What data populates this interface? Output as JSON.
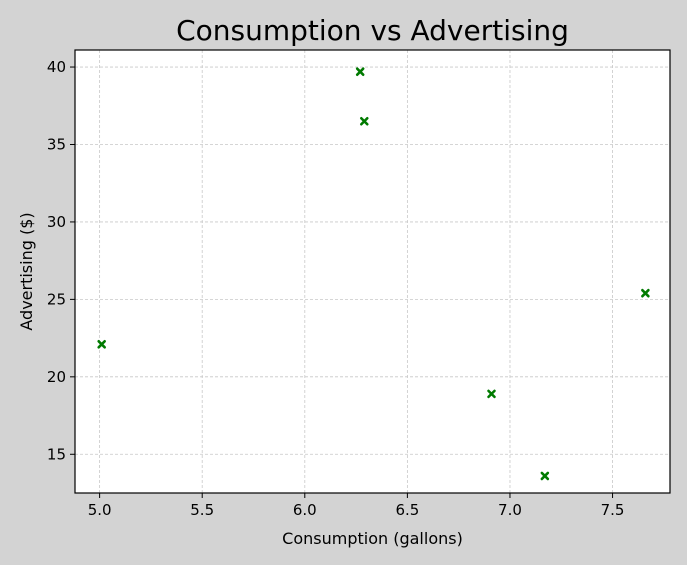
{
  "chart_data": {
    "type": "scatter",
    "title": "Consumption vs Advertising",
    "xlabel": "Consumption (gallons)",
    "ylabel": "Advertising ($)",
    "xlim": [
      4.88,
      7.78
    ],
    "ylim": [
      12.5,
      41.1
    ],
    "xticks": [
      5.0,
      5.5,
      6.0,
      6.5,
      7.0,
      7.5
    ],
    "xtick_labels": [
      "5.0",
      "5.5",
      "6.0",
      "6.5",
      "7.0",
      "7.5"
    ],
    "yticks": [
      15,
      20,
      25,
      30,
      35,
      40
    ],
    "ytick_labels": [
      "15",
      "20",
      "25",
      "30",
      "35",
      "40"
    ],
    "grid": true,
    "marker": "x",
    "color": "#007a00",
    "background": "#d3d3d3",
    "plot_background": "#ffffff",
    "points": [
      {
        "x": 5.01,
        "y": 22.1
      },
      {
        "x": 6.27,
        "y": 39.7
      },
      {
        "x": 6.29,
        "y": 36.5
      },
      {
        "x": 6.91,
        "y": 18.9
      },
      {
        "x": 7.17,
        "y": 13.6
      },
      {
        "x": 7.66,
        "y": 25.4
      }
    ]
  }
}
